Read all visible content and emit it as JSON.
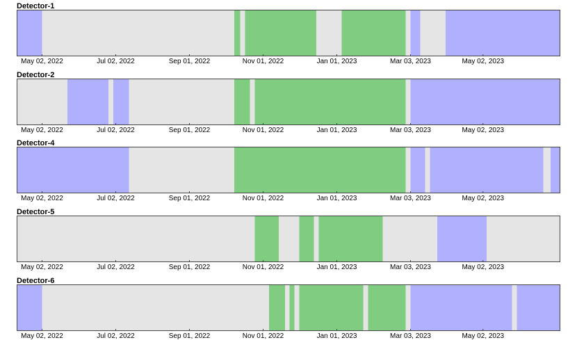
{
  "chart_data": [
    {
      "type": "timeline",
      "title": "Detector-1",
      "xlim": [
        "2022-04-11",
        "2023-07-05"
      ],
      "xticks": [
        "May 02, 2022",
        "Jul 02, 2022",
        "Sep 01, 2022",
        "Nov 01, 2022",
        "Jan 01, 2023",
        "Mar 03, 2023",
        "May 02, 2023"
      ],
      "segments": [
        {
          "start": "2022-04-11",
          "end": "2022-05-02",
          "color": "#b0b0ff"
        },
        {
          "start": "2022-05-02",
          "end": "2022-10-08",
          "color": "#e5e5e5"
        },
        {
          "start": "2022-10-08",
          "end": "2022-10-13",
          "color": "#80cc80"
        },
        {
          "start": "2022-10-13",
          "end": "2022-10-17",
          "color": "#e5e5e5"
        },
        {
          "start": "2022-10-17",
          "end": "2022-12-15",
          "color": "#80cc80"
        },
        {
          "start": "2022-12-15",
          "end": "2023-01-05",
          "color": "#e5e5e5"
        },
        {
          "start": "2023-01-05",
          "end": "2023-02-27",
          "color": "#80cc80"
        },
        {
          "start": "2023-02-27",
          "end": "2023-03-03",
          "color": "#e5e5e5"
        },
        {
          "start": "2023-03-03",
          "end": "2023-03-11",
          "color": "#b0b0ff"
        },
        {
          "start": "2023-03-11",
          "end": "2023-04-01",
          "color": "#e5e5e5"
        },
        {
          "start": "2023-04-01",
          "end": "2023-07-05",
          "color": "#b0b0ff"
        }
      ]
    },
    {
      "type": "timeline",
      "title": "Detector-2",
      "xlim": [
        "2022-04-11",
        "2023-07-05"
      ],
      "xticks": [
        "May 02, 2022",
        "Jul 02, 2022",
        "Sep 01, 2022",
        "Nov 01, 2022",
        "Jan 01, 2023",
        "Mar 03, 2023",
        "May 02, 2023"
      ],
      "segments": [
        {
          "start": "2022-04-11",
          "end": "2022-05-23",
          "color": "#e5e5e5"
        },
        {
          "start": "2022-05-23",
          "end": "2022-06-26",
          "color": "#b0b0ff"
        },
        {
          "start": "2022-06-26",
          "end": "2022-06-30",
          "color": "#e5e5e5"
        },
        {
          "start": "2022-06-30",
          "end": "2022-07-13",
          "color": "#b0b0ff"
        },
        {
          "start": "2022-07-13",
          "end": "2022-10-08",
          "color": "#e5e5e5"
        },
        {
          "start": "2022-10-08",
          "end": "2022-10-21",
          "color": "#80cc80"
        },
        {
          "start": "2022-10-21",
          "end": "2022-10-25",
          "color": "#e5e5e5"
        },
        {
          "start": "2022-10-25",
          "end": "2023-02-27",
          "color": "#80cc80"
        },
        {
          "start": "2023-02-27",
          "end": "2023-03-03",
          "color": "#e5e5e5"
        },
        {
          "start": "2023-03-03",
          "end": "2023-07-05",
          "color": "#b0b0ff"
        }
      ]
    },
    {
      "type": "timeline",
      "title": "Detector-4",
      "xlim": [
        "2022-04-11",
        "2023-07-05"
      ],
      "xticks": [
        "May 02, 2022",
        "Jul 02, 2022",
        "Sep 01, 2022",
        "Nov 01, 2022",
        "Jan 01, 2023",
        "Mar 03, 2023",
        "May 02, 2023"
      ],
      "segments": [
        {
          "start": "2022-04-11",
          "end": "2022-07-13",
          "color": "#b0b0ff"
        },
        {
          "start": "2022-07-13",
          "end": "2022-10-08",
          "color": "#e5e5e5"
        },
        {
          "start": "2022-10-08",
          "end": "2023-02-27",
          "color": "#80cc80"
        },
        {
          "start": "2023-02-27",
          "end": "2023-03-03",
          "color": "#e5e5e5"
        },
        {
          "start": "2023-03-03",
          "end": "2023-03-15",
          "color": "#b0b0ff"
        },
        {
          "start": "2023-03-15",
          "end": "2023-03-19",
          "color": "#e5e5e5"
        },
        {
          "start": "2023-03-19",
          "end": "2023-06-21",
          "color": "#b0b0ff"
        },
        {
          "start": "2023-06-21",
          "end": "2023-06-27",
          "color": "#e5e5e5"
        },
        {
          "start": "2023-06-27",
          "end": "2023-07-05",
          "color": "#b0b0ff"
        }
      ]
    },
    {
      "type": "timeline",
      "title": "Detector-5",
      "xlim": [
        "2022-04-11",
        "2023-07-05"
      ],
      "xticks": [
        "May 02, 2022",
        "Jul 02, 2022",
        "Sep 01, 2022",
        "Nov 01, 2022",
        "Jan 01, 2023",
        "Mar 03, 2023",
        "May 02, 2023"
      ],
      "segments": [
        {
          "start": "2022-04-11",
          "end": "2022-10-25",
          "color": "#e5e5e5"
        },
        {
          "start": "2022-10-25",
          "end": "2022-11-14",
          "color": "#80cc80"
        },
        {
          "start": "2022-11-14",
          "end": "2022-12-01",
          "color": "#e5e5e5"
        },
        {
          "start": "2022-12-01",
          "end": "2022-12-13",
          "color": "#80cc80"
        },
        {
          "start": "2022-12-13",
          "end": "2022-12-17",
          "color": "#e5e5e5"
        },
        {
          "start": "2022-12-17",
          "end": "2023-02-08",
          "color": "#80cc80"
        },
        {
          "start": "2023-02-08",
          "end": "2023-03-25",
          "color": "#e5e5e5"
        },
        {
          "start": "2023-03-25",
          "end": "2023-05-05",
          "color": "#b0b0ff"
        },
        {
          "start": "2023-05-05",
          "end": "2023-07-05",
          "color": "#e5e5e5"
        }
      ]
    },
    {
      "type": "timeline",
      "title": "Detector-6",
      "xlim": [
        "2022-04-11",
        "2023-07-05"
      ],
      "xticks": [
        "May 02, 2022",
        "Jul 02, 2022",
        "Sep 01, 2022",
        "Nov 01, 2022",
        "Jan 01, 2023",
        "Mar 03, 2023",
        "May 02, 2023"
      ],
      "segments": [
        {
          "start": "2022-04-11",
          "end": "2022-05-02",
          "color": "#b0b0ff"
        },
        {
          "start": "2022-05-02",
          "end": "2022-11-06",
          "color": "#e5e5e5"
        },
        {
          "start": "2022-11-06",
          "end": "2022-11-19",
          "color": "#80cc80"
        },
        {
          "start": "2022-11-19",
          "end": "2022-11-23",
          "color": "#e5e5e5"
        },
        {
          "start": "2022-11-23",
          "end": "2022-11-27",
          "color": "#80cc80"
        },
        {
          "start": "2022-11-27",
          "end": "2022-12-01",
          "color": "#e5e5e5"
        },
        {
          "start": "2022-12-01",
          "end": "2023-01-23",
          "color": "#80cc80"
        },
        {
          "start": "2023-01-23",
          "end": "2023-01-27",
          "color": "#e5e5e5"
        },
        {
          "start": "2023-01-27",
          "end": "2023-02-27",
          "color": "#80cc80"
        },
        {
          "start": "2023-02-27",
          "end": "2023-03-03",
          "color": "#e5e5e5"
        },
        {
          "start": "2023-03-03",
          "end": "2023-05-26",
          "color": "#b0b0ff"
        },
        {
          "start": "2023-05-26",
          "end": "2023-05-30",
          "color": "#e5e5e5"
        },
        {
          "start": "2023-05-30",
          "end": "2023-07-05",
          "color": "#b0b0ff"
        }
      ]
    }
  ]
}
